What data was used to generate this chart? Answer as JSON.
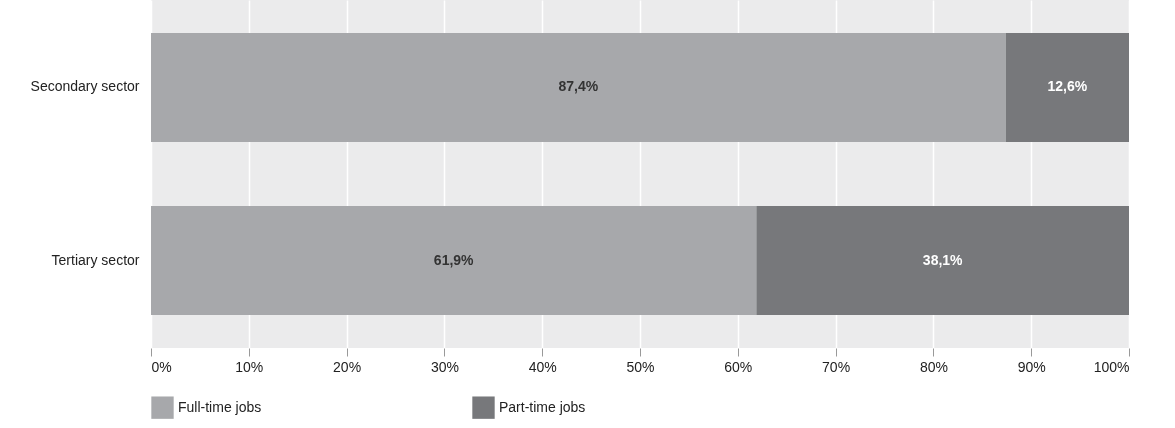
{
  "chart_data": {
    "type": "bar",
    "orientation": "horizontal",
    "stacked": true,
    "categories": [
      "Secondary sector",
      "Tertiary sector"
    ],
    "series": [
      {
        "name": "Full-time jobs",
        "color": "#a7a8ab",
        "values": [
          87.4,
          61.9
        ],
        "value_labels": [
          "87,4%",
          "61,9%"
        ]
      },
      {
        "name": "Part-time jobs",
        "color": "#77787b",
        "values": [
          12.6,
          38.1
        ],
        "value_labels": [
          "12,6%",
          "38,1%"
        ]
      }
    ],
    "xlim": [
      0,
      100
    ],
    "xticks": [
      {
        "value": 0,
        "label": "0%"
      },
      {
        "value": 10,
        "label": "10%"
      },
      {
        "value": 20,
        "label": "20%"
      },
      {
        "value": 30,
        "label": "30%"
      },
      {
        "value": 40,
        "label": "40%"
      },
      {
        "value": 50,
        "label": "50%"
      },
      {
        "value": 60,
        "label": "60%"
      },
      {
        "value": 70,
        "label": "70%"
      },
      {
        "value": 80,
        "label": "80%"
      },
      {
        "value": 90,
        "label": "90%"
      },
      {
        "value": 100,
        "label": "100%"
      }
    ],
    "grid": "x",
    "legend": "bottom left"
  }
}
